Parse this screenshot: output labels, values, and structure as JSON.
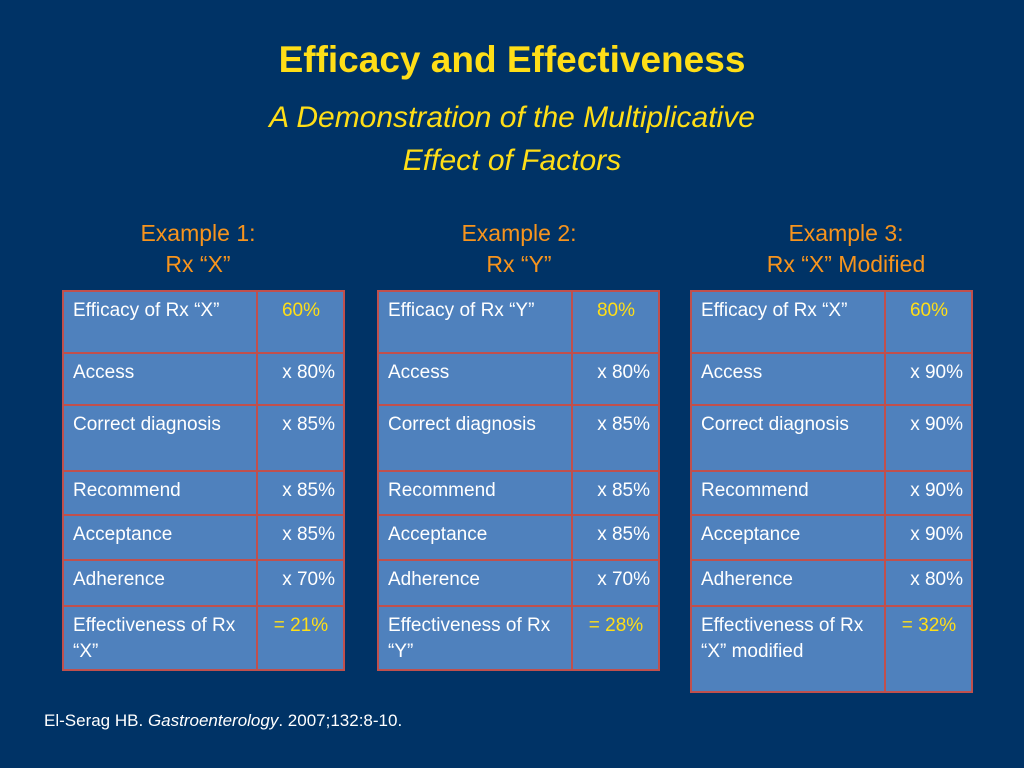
{
  "slide": {
    "title": "Efficacy and Effectiveness",
    "subtitle_line1": "A Demonstration of the Multiplicative",
    "subtitle_line2": "Effect of Factors"
  },
  "examples": [
    {
      "heading_line1": "Example 1:",
      "heading_line2": "Rx “X”",
      "rows": [
        {
          "label": "Efficacy of Rx “X”",
          "value": "60%"
        },
        {
          "label": "Access",
          "value": "x 80%"
        },
        {
          "label": "Correct diagnosis",
          "value": "x 85%"
        },
        {
          "label": "Recommend",
          "value": "x 85%"
        },
        {
          "label": "Acceptance",
          "value": "x 85%"
        },
        {
          "label": "Adherence",
          "value": "x 70%"
        },
        {
          "label": "Effectiveness of Rx “X”",
          "value": "= 21%"
        }
      ]
    },
    {
      "heading_line1": "Example 2:",
      "heading_line2": "Rx “Y”",
      "rows": [
        {
          "label": "Efficacy of Rx “Y”",
          "value": "80%"
        },
        {
          "label": "Access",
          "value": "x 80%"
        },
        {
          "label": "Correct diagnosis",
          "value": "x 85%"
        },
        {
          "label": "Recommend",
          "value": "x 85%"
        },
        {
          "label": "Acceptance",
          "value": "x 85%"
        },
        {
          "label": "Adherence",
          "value": "x 70%"
        },
        {
          "label": "Effectiveness of Rx “Y”",
          "value": "= 28%"
        }
      ]
    },
    {
      "heading_line1": "Example 3:",
      "heading_line2": "Rx “X” Modified",
      "rows": [
        {
          "label": "Efficacy of Rx “X”",
          "value": "60%"
        },
        {
          "label": "Access",
          "value": "x 90%"
        },
        {
          "label": "Correct diagnosis",
          "value": "x 90%"
        },
        {
          "label": "Recommend",
          "value": "x 90%"
        },
        {
          "label": "Acceptance",
          "value": "x 90%"
        },
        {
          "label": "Adherence",
          "value": "x 80%"
        },
        {
          "label": "Effectiveness of Rx “X” modified",
          "value": "= 32%"
        }
      ]
    }
  ],
  "citation": {
    "authors": "El-Serag HB. ",
    "journal": "Gastroenterology",
    "details": ". 2007;132:8-10."
  },
  "colors": {
    "background": "#003366",
    "title": "#ffde17",
    "example_heading": "#f7941d",
    "table_fill": "#4f81bd",
    "table_border": "#c0504d"
  }
}
